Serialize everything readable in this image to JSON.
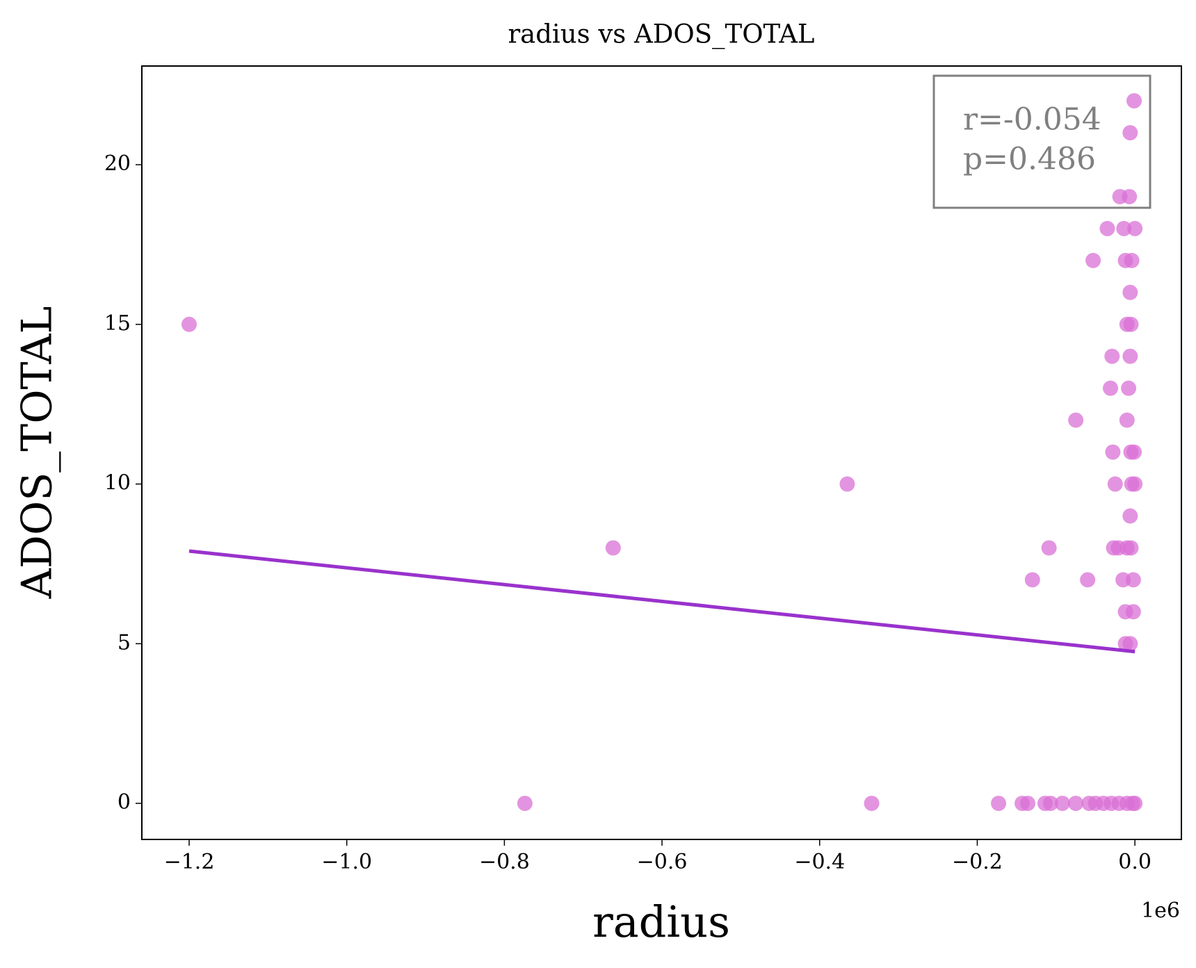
{
  "chart_data": {
    "type": "scatter",
    "title": "radius vs ADOS_TOTAL",
    "x_label": "radius",
    "y_label": "ADOS_TOTAL",
    "x_offset_label": "1e6",
    "annotations": [
      "r=-0.054",
      "p=0.486"
    ],
    "points": {
      "color": "#da70d6",
      "x": [
        -1.2,
        -0.774,
        -0.662,
        -0.365,
        -0.334,
        -0.173,
        -0.143,
        -0.136,
        -0.13,
        -0.114,
        -0.107,
        -0.092,
        -0.075,
        -0.075,
        -0.109,
        -0.06,
        -0.053,
        -0.035,
        -0.031,
        -0.029,
        -0.028,
        -0.025,
        -0.027,
        -0.021,
        -0.019,
        -0.014,
        -0.012,
        -0.01,
        -0.005,
        -0.008,
        -0.01,
        -0.005,
        -0.001,
        -0.001,
        -0.006,
        -0.007,
        0.0,
        -0.004,
        -0.006,
        -0.006,
        -0.004,
        0.0,
        -0.006,
        -0.01,
        -0.005,
        -0.015,
        -0.002,
        -0.012,
        -0.002,
        -0.012,
        -0.006,
        -0.058,
        -0.05,
        -0.04,
        -0.03,
        -0.02,
        -0.01,
        -0.003,
        0.0
      ],
      "y": [
        15,
        0,
        8,
        10,
        0,
        0,
        0,
        0,
        7,
        0,
        0,
        0,
        12,
        0,
        8,
        7,
        17,
        18,
        13,
        14,
        11,
        10,
        8,
        8,
        19,
        18,
        17,
        15,
        15,
        13,
        12,
        11,
        11,
        22,
        21,
        19,
        18,
        17,
        16,
        14,
        10,
        10,
        9,
        8,
        8,
        7,
        7,
        6,
        6,
        5,
        5,
        0,
        0,
        0,
        0,
        0,
        0,
        0,
        0
      ]
    },
    "fit_line": {
      "color": "#9932cc",
      "x": [
        -1.2,
        0.0
      ],
      "y": [
        7.9,
        4.75
      ]
    },
    "xlim": [
      -1.26,
      0.059
    ],
    "ylim": [
      -1.13,
      23.09
    ],
    "xticks": [
      {
        "value": -1.2,
        "label": "−1.2"
      },
      {
        "value": -1.0,
        "label": "−1.0"
      },
      {
        "value": -0.8,
        "label": "−0.8"
      },
      {
        "value": -0.6,
        "label": "−0.6"
      },
      {
        "value": -0.4,
        "label": "−0.4"
      },
      {
        "value": -0.2,
        "label": "−0.2"
      },
      {
        "value": 0.0,
        "label": "0.0"
      }
    ],
    "yticks": [
      0,
      5,
      10,
      15,
      20
    ]
  }
}
